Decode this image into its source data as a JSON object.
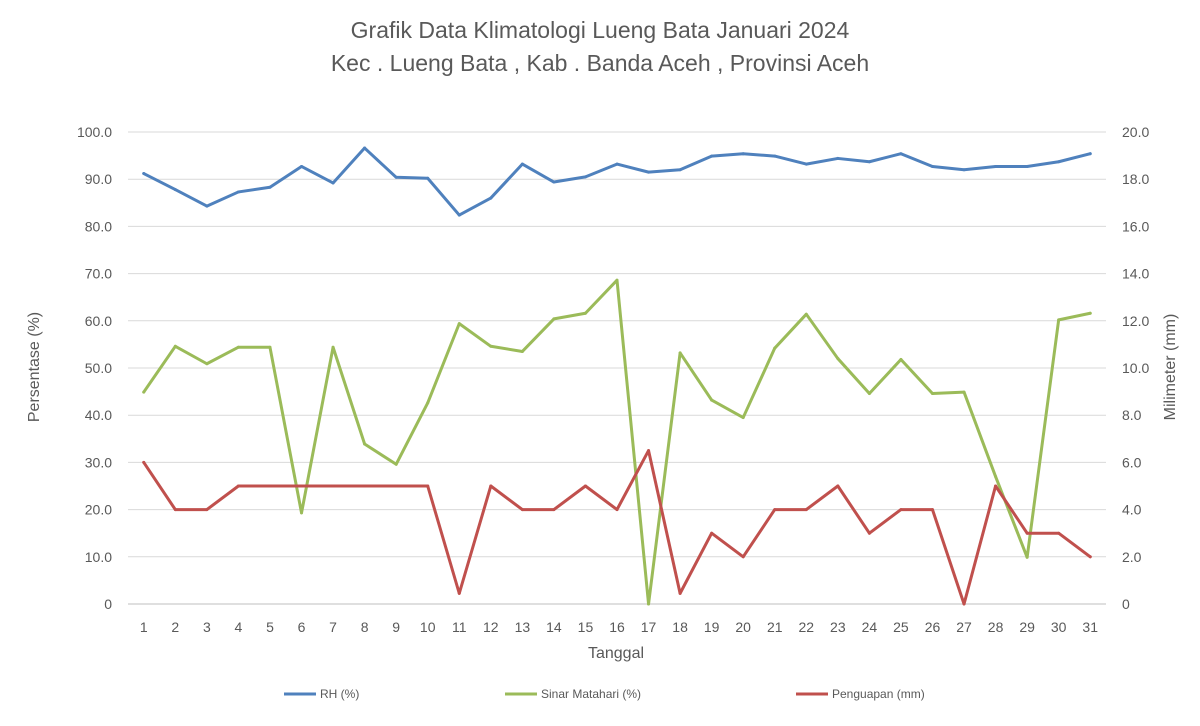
{
  "chart_data": {
    "type": "line",
    "title": "Grafik Data Klimatologi Lueng Bata Januari 2024",
    "subtitle": "Kec . Lueng Bata , Kab . Banda Aceh , Provinsi  Aceh",
    "xlabel": "Tanggal",
    "ylabel_left": "Persentase (%)",
    "ylabel_right": "Milimeter (mm)",
    "ylim_left": [
      0,
      100
    ],
    "ylim_right": [
      0,
      20
    ],
    "yticks_left": [
      "0",
      "10.0",
      "20.0",
      "30.0",
      "40.0",
      "50.0",
      "60.0",
      "70.0",
      "80.0",
      "90.0",
      "100.0"
    ],
    "yticks_right": [
      "0",
      "2.0",
      "4.0",
      "6.0",
      "8.0",
      "10.0",
      "12.0",
      "14.0",
      "16.0",
      "18.0",
      "20.0"
    ],
    "categories": [
      "1",
      "2",
      "3",
      "4",
      "5",
      "6",
      "7",
      "8",
      "9",
      "10",
      "11",
      "12",
      "13",
      "14",
      "15",
      "16",
      "17",
      "18",
      "19",
      "20",
      "21",
      "22",
      "23",
      "24",
      "25",
      "26",
      "27",
      "28",
      "29",
      "30",
      "31"
    ],
    "grid": true,
    "legend_position": "bottom",
    "series": [
      {
        "name": "RH (%)",
        "axis": "left",
        "color": "#4f81bd",
        "values": [
          91.2,
          87.8,
          84.3,
          87.3,
          88.3,
          92.7,
          89.2,
          96.6,
          90.4,
          90.2,
          82.4,
          86.0,
          93.2,
          89.4,
          90.5,
          93.2,
          91.5,
          92.0,
          94.9,
          95.4,
          94.9,
          93.2,
          94.4,
          93.7,
          95.4,
          92.7,
          92.0,
          92.7,
          92.7,
          93.7,
          95.4
        ]
      },
      {
        "name": "Sinar Matahari (%)",
        "axis": "left",
        "color": "#9bbb59",
        "values": [
          44.9,
          54.6,
          50.9,
          54.4,
          54.4,
          19.3,
          54.4,
          33.9,
          29.6,
          42.6,
          59.4,
          54.6,
          53.5,
          60.4,
          61.6,
          68.6,
          0,
          53.2,
          43.2,
          39.5,
          54.2,
          61.4,
          52.0,
          44.6,
          51.8,
          44.6,
          44.9,
          27.0,
          9.9,
          60.2,
          61.6
        ]
      },
      {
        "name": "Penguapan (mm)",
        "axis": "right",
        "color": "#c0504d",
        "values": [
          6.0,
          4.0,
          4.0,
          5.0,
          5.0,
          5.0,
          5.0,
          5.0,
          5.0,
          5.0,
          0.45,
          5.0,
          4.0,
          4.0,
          5.0,
          4.0,
          6.5,
          0.45,
          3.0,
          2.0,
          4.0,
          4.0,
          5.0,
          3.0,
          4.0,
          4.0,
          0,
          5.0,
          3.0,
          3.0,
          2.0
        ]
      }
    ]
  }
}
